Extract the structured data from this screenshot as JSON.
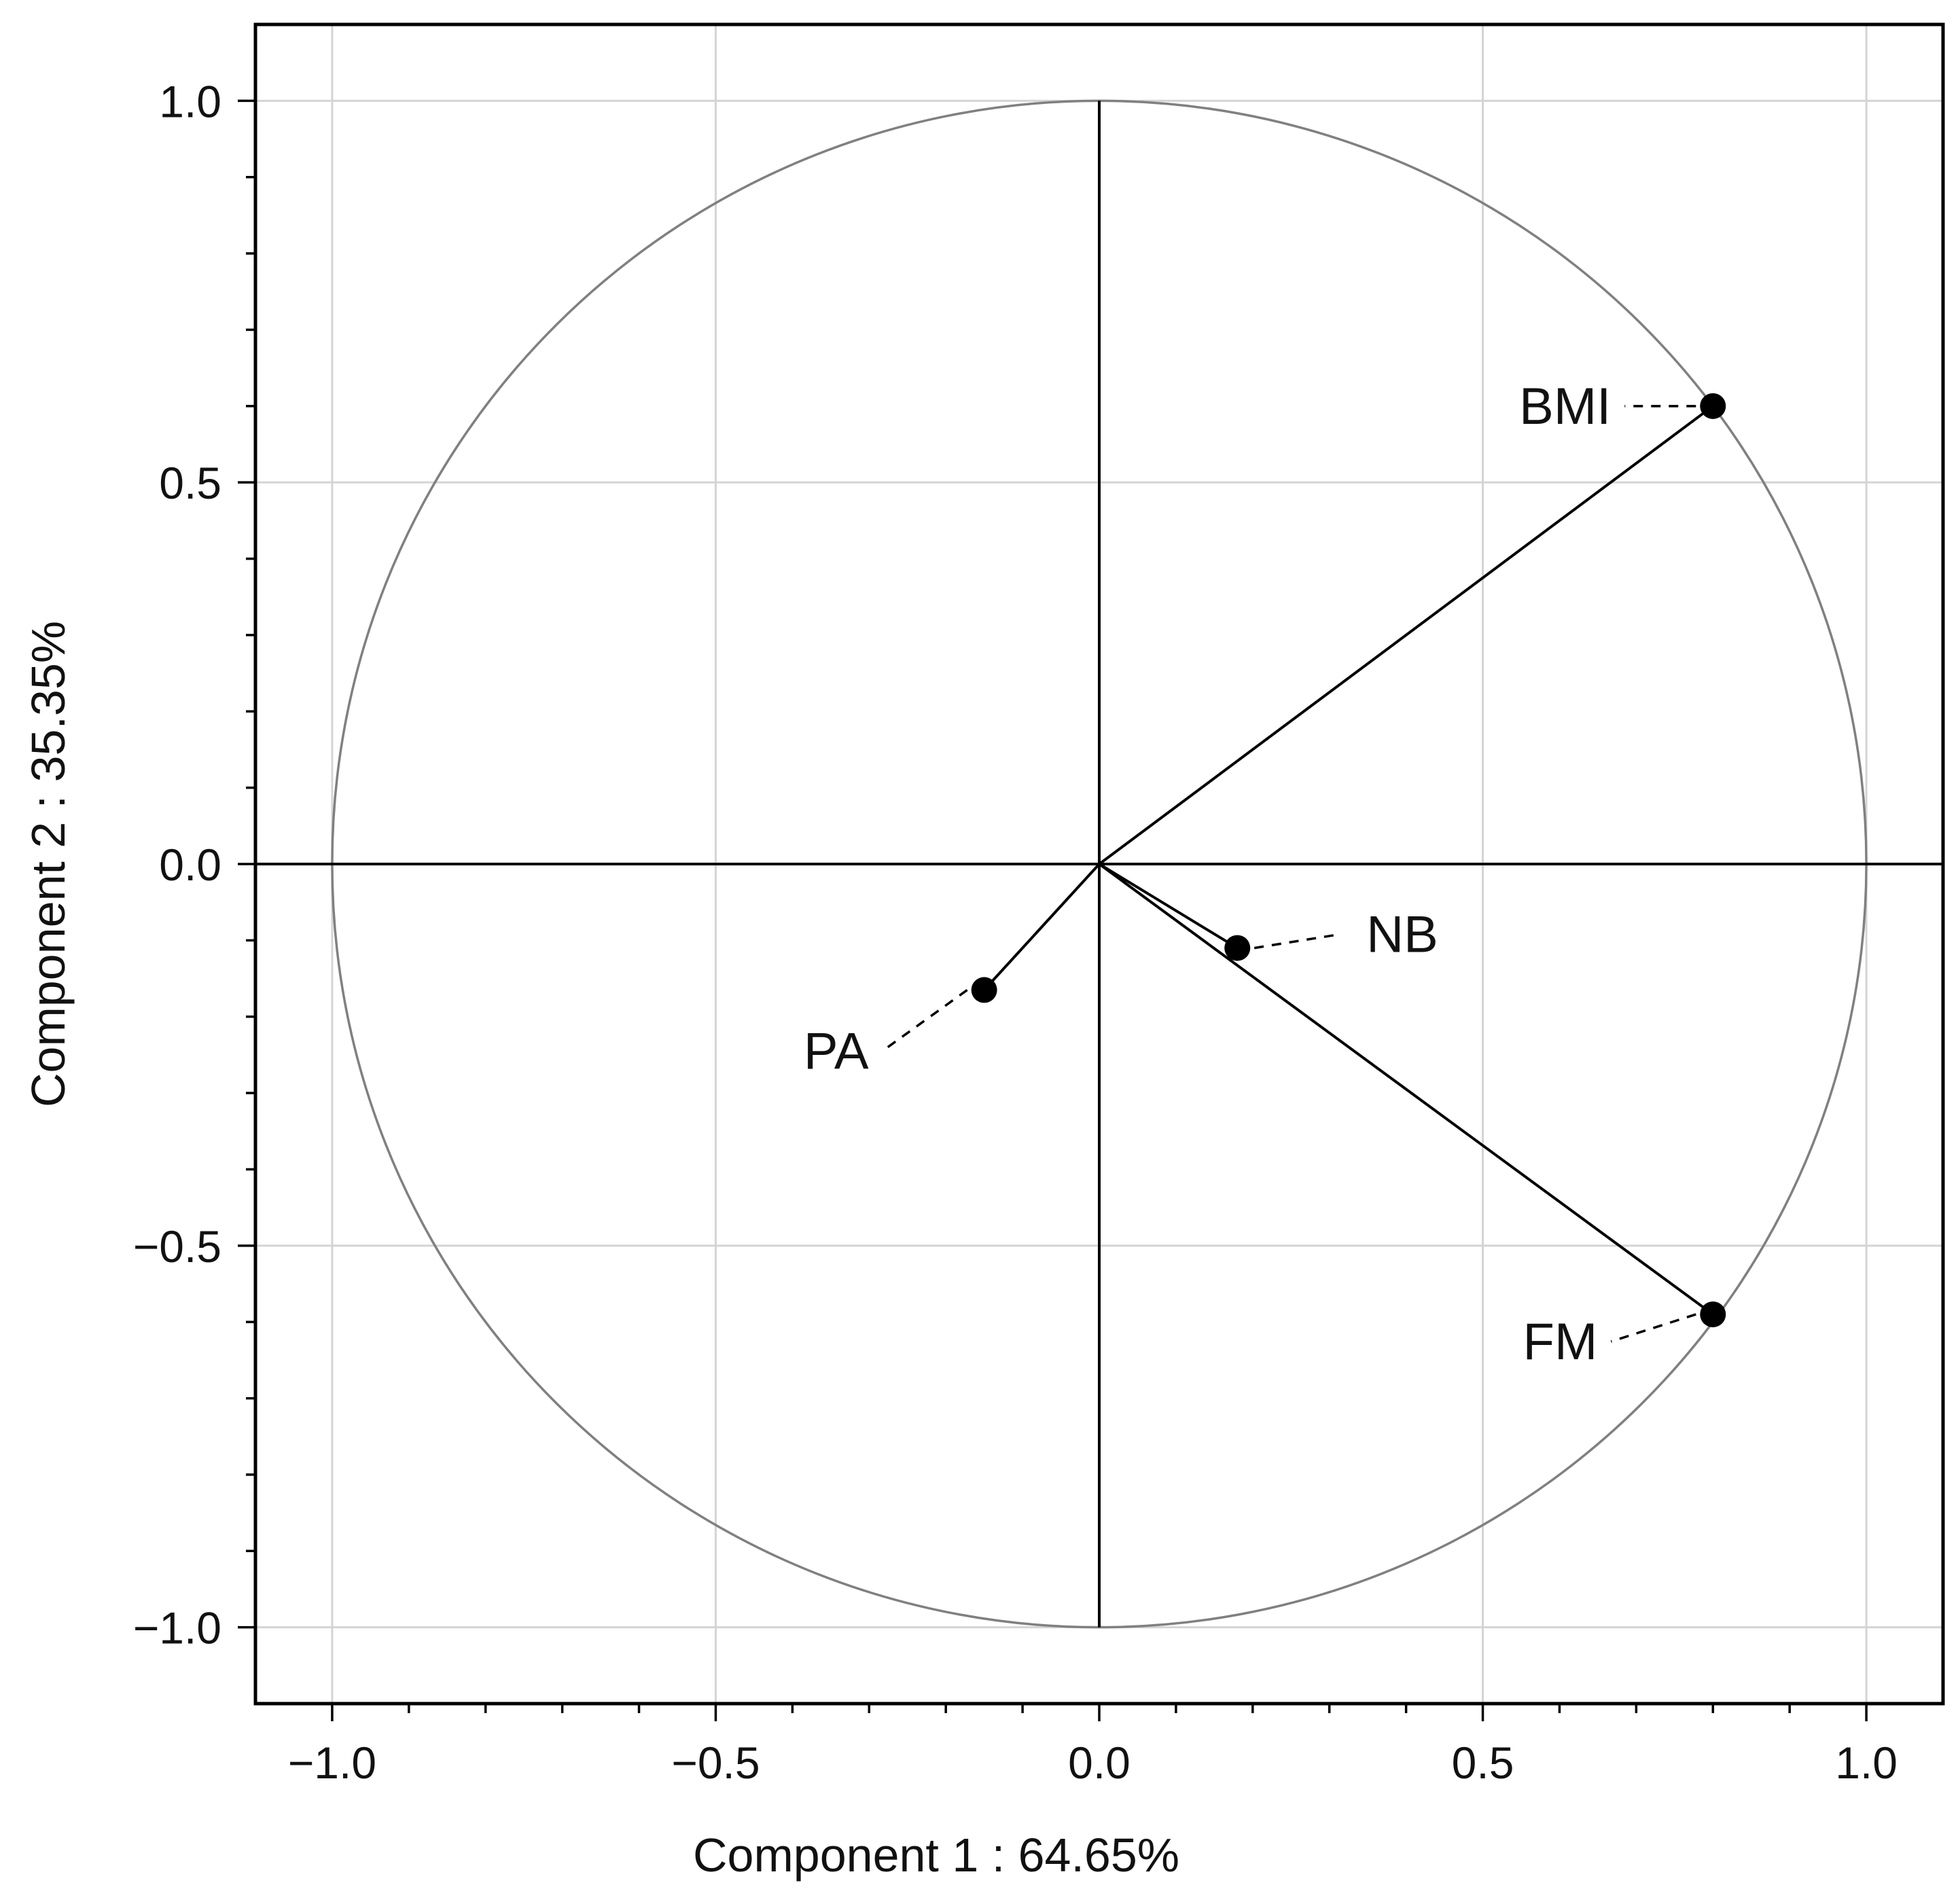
{
  "chart_data": {
    "type": "scatter",
    "title": "",
    "xlabel": "Component 1 : 64.65%",
    "ylabel": "Component 2 : 35.35%",
    "xlim": [
      -1.1,
      1.1
    ],
    "ylim": [
      -1.1,
      1.1
    ],
    "xticks": [
      -1.0,
      -0.5,
      0.0,
      0.5,
      1.0
    ],
    "yticks": [
      -1.0,
      -0.5,
      0.0,
      0.5,
      1.0
    ],
    "xtick_labels": [
      "−1.0",
      "−0.5",
      "0.0",
      "0.5",
      "1.0"
    ],
    "ytick_labels": [
      "−1.0",
      "−0.5",
      "0.0",
      "0.5",
      "1.0"
    ],
    "grid": true,
    "unit_circle": true,
    "colors": {
      "grid": "#d4d4d4",
      "circle": "#808080",
      "ink": "#000000"
    },
    "points": [
      {
        "label": "BMI",
        "x": 0.8,
        "y": 0.6
      },
      {
        "label": "NB",
        "x": 0.18,
        "y": -0.11
      },
      {
        "label": "PA",
        "x": -0.15,
        "y": -0.165
      },
      {
        "label": "FM",
        "x": 0.8,
        "y": -0.59
      }
    ]
  }
}
